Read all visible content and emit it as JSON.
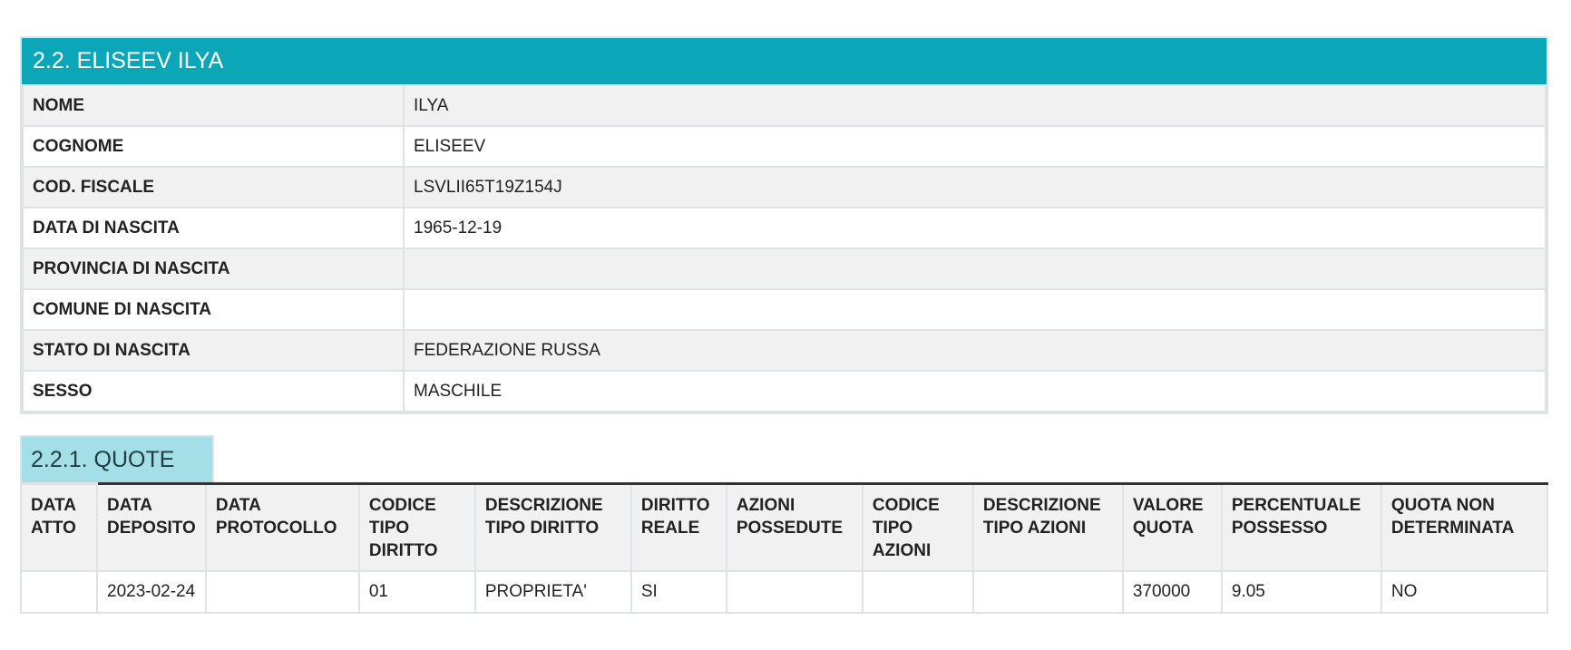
{
  "section": {
    "title": "2.2. ELISEEV ILYA",
    "fields": [
      {
        "label": "NOME",
        "value": "ILYA"
      },
      {
        "label": "COGNOME",
        "value": "ELISEEV"
      },
      {
        "label": "COD. FISCALE",
        "value": "LSVLII65T19Z154J"
      },
      {
        "label": "DATA DI NASCITA",
        "value": "1965-12-19"
      },
      {
        "label": "PROVINCIA DI NASCITA",
        "value": ""
      },
      {
        "label": "COMUNE DI NASCITA",
        "value": ""
      },
      {
        "label": "STATO DI NASCITA",
        "value": "FEDERAZIONE RUSSA"
      },
      {
        "label": "SESSO",
        "value": "MASCHILE"
      }
    ]
  },
  "quote": {
    "title": "2.2.1. QUOTE",
    "columns": [
      "DATA ATTO",
      "DATA DEPOSITO",
      "DATA PROTOCOLLO",
      "CODICE TIPO DIRITTO",
      "DESCRIZIONE TIPO DIRITTO",
      "DIRITTO REALE",
      "AZIONI POSSEDUTE",
      "CODICE TIPO AZIONI",
      "DESCRIZIONE TIPO AZIONI",
      "VALORE QUOTA",
      "PERCENTUALE POSSESSO",
      "QUOTA NON DETERMINATA"
    ],
    "rows": [
      [
        "",
        "2023-02-24",
        "",
        "01",
        "PROPRIETA'",
        "SI",
        "",
        "",
        "",
        "370000",
        "9.05",
        "NO"
      ]
    ]
  },
  "colors": {
    "header": "#0ba6b8",
    "tab": "#a4dfe8"
  }
}
